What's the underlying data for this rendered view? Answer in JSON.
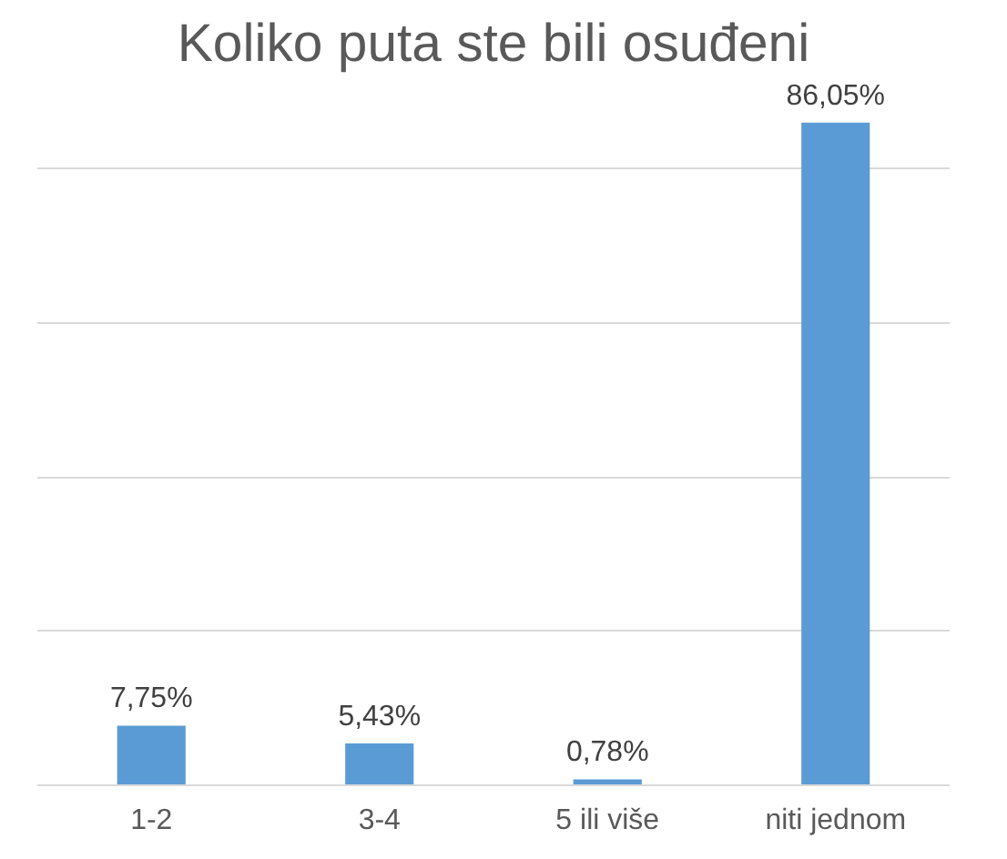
{
  "chart_data": {
    "type": "bar",
    "title": "Koliko puta ste bili osuđeni",
    "categories": [
      "1-2",
      "3-4",
      "5 ili više",
      "niti jednom"
    ],
    "values": [
      7.75,
      5.43,
      0.78,
      86.05
    ],
    "value_labels": [
      "7,75%",
      "5,43%",
      "0,78%",
      "86,05%"
    ],
    "color": "#5b9bd5",
    "grid": "y",
    "tick_labels": "x"
  }
}
